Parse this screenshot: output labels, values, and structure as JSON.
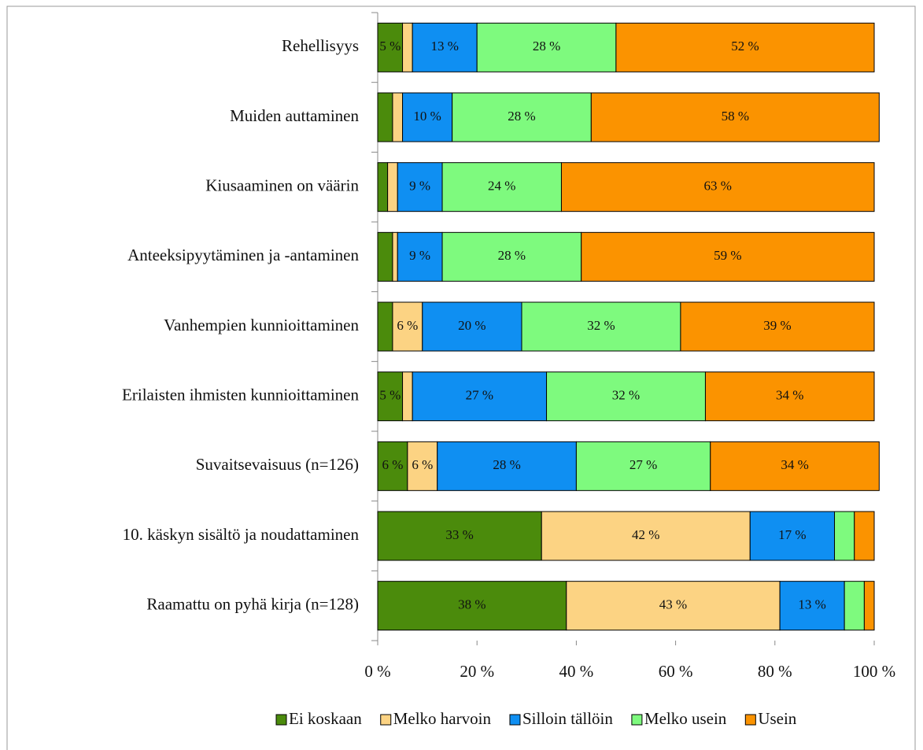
{
  "chart_data": {
    "type": "stacked-bar-horizontal",
    "categories": [
      "Rehellisyys",
      "Muiden auttaminen",
      "Kiusaaminen on väärin",
      "Anteeksipyytäminen ja -antaminen",
      "Vanhempien kunnioittaminen",
      "Erilaisten ihmisten kunnioittaminen",
      "Suvaitsevaisuus (n=126)",
      "10. käskyn sisältö ja noudattaminen",
      "Raamattu on pyhä kirja (n=128)"
    ],
    "series": [
      {
        "name": "Ei koskaan",
        "color": "#4b8b0c",
        "values": [
          5,
          3,
          2,
          3,
          3,
          5,
          6,
          33,
          38
        ],
        "value_labels": [
          "5 %",
          null,
          null,
          null,
          null,
          "5 %",
          "6 %",
          "33 %",
          "38 %"
        ]
      },
      {
        "name": "Melko harvoin",
        "color": "#fcd383",
        "values": [
          2,
          2,
          2,
          1,
          6,
          2,
          6,
          42,
          43
        ],
        "value_labels": [
          null,
          null,
          null,
          null,
          "6 %",
          null,
          "6 %",
          "42 %",
          "43 %"
        ]
      },
      {
        "name": "Silloin tällöin",
        "color": "#0f8ff2",
        "values": [
          13,
          10,
          9,
          9,
          20,
          27,
          28,
          17,
          13
        ],
        "value_labels": [
          "13 %",
          "10 %",
          "9 %",
          "9 %",
          "20 %",
          "27 %",
          "28 %",
          "17 %",
          "13 %"
        ]
      },
      {
        "name": "Melko usein",
        "color": "#7efa7e",
        "values": [
          28,
          28,
          24,
          28,
          32,
          32,
          27,
          4,
          4
        ],
        "value_labels": [
          "28 %",
          "28 %",
          "24 %",
          "28 %",
          "32 %",
          "32 %",
          "27 %",
          null,
          null
        ]
      },
      {
        "name": "Usein",
        "color": "#fb9300",
        "values": [
          52,
          58,
          63,
          59,
          39,
          34,
          34,
          4,
          2
        ],
        "value_labels": [
          "52 %",
          "58 %",
          "63 %",
          "59 %",
          "39 %",
          "34 %",
          "34 %",
          null,
          null
        ]
      }
    ],
    "xlim": [
      0,
      100
    ],
    "xticks": [
      {
        "value": 0,
        "label": "0 %"
      },
      {
        "value": 20,
        "label": "20 %"
      },
      {
        "value": 40,
        "label": "40 %"
      },
      {
        "value": 60,
        "label": "60 %"
      },
      {
        "value": 80,
        "label": "80 %"
      },
      {
        "value": 100,
        "label": "100 %"
      }
    ],
    "legend": "bottom"
  }
}
